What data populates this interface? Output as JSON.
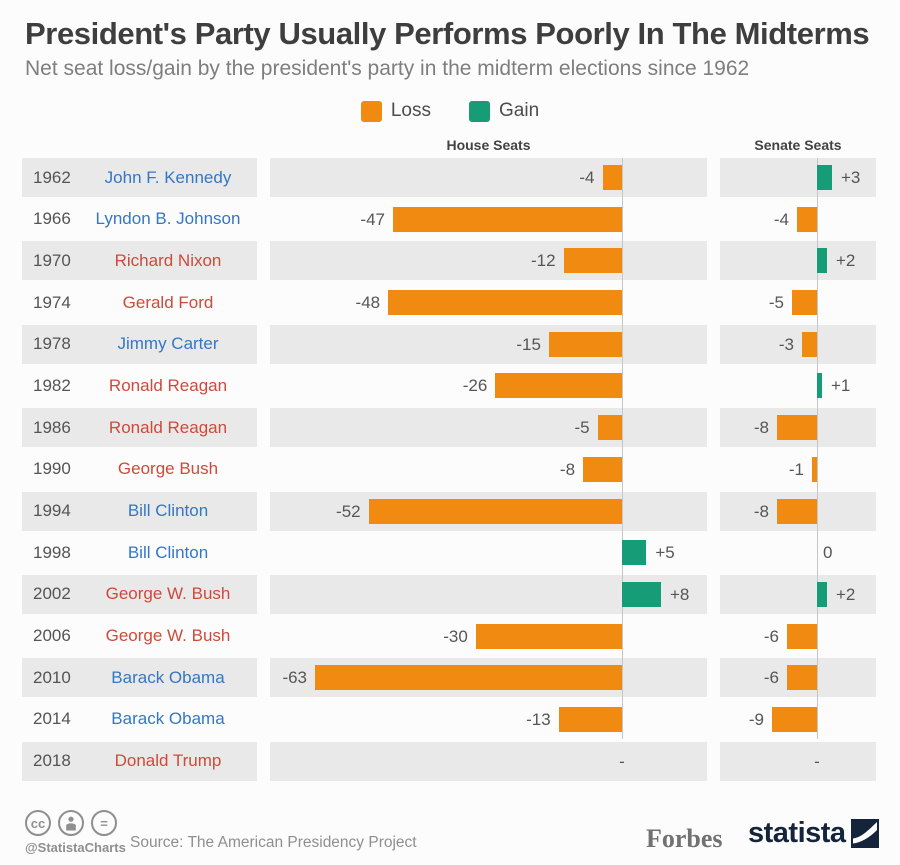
{
  "title": "President's Party Usually Performs Poorly In The Midterms",
  "subtitle": "Net seat loss/gain by the president's party in the midterm elections since 1962",
  "legend": {
    "loss_label": "Loss",
    "gain_label": "Gain"
  },
  "columns": {
    "house": "House Seats",
    "senate": "Senate Seats"
  },
  "colors": {
    "loss": "#f18a10",
    "gain": "#169d78",
    "democrat": "#3377c5",
    "republican": "#ce4a3a",
    "stripe": "#e9e9e9",
    "zero_line": "#c6c6c6",
    "value_text": "#565656"
  },
  "chart_data": {
    "type": "bar",
    "orientation": "horizontal",
    "title": "President's Party Usually Performs Poorly In The Midterms",
    "subtitle": "Net seat loss/gain by the president's party in the midterm elections since 1962",
    "panels": [
      {
        "key": "house",
        "label": "House Seats",
        "xlim": [
          -72,
          18
        ]
      },
      {
        "key": "senate",
        "label": "Senate Seats",
        "xlim": [
          -19,
          12
        ]
      }
    ],
    "legend": [
      {
        "label": "Loss",
        "color": "#f18a10"
      },
      {
        "label": "Gain",
        "color": "#169d78"
      }
    ],
    "rows": [
      {
        "year": "1962",
        "president": "John F. Kennedy",
        "party": "democrat",
        "house": -4,
        "senate": 3
      },
      {
        "year": "1966",
        "president": "Lyndon B. Johnson",
        "party": "democrat",
        "house": -47,
        "senate": -4
      },
      {
        "year": "1970",
        "president": "Richard Nixon",
        "party": "republican",
        "house": -12,
        "senate": 2
      },
      {
        "year": "1974",
        "president": "Gerald Ford",
        "party": "republican",
        "house": -48,
        "senate": -5
      },
      {
        "year": "1978",
        "president": "Jimmy Carter",
        "party": "democrat",
        "house": -15,
        "senate": -3
      },
      {
        "year": "1982",
        "president": "Ronald Reagan",
        "party": "republican",
        "house": -26,
        "senate": 1
      },
      {
        "year": "1986",
        "president": "Ronald Reagan",
        "party": "republican",
        "house": -5,
        "senate": -8
      },
      {
        "year": "1990",
        "president": "George Bush",
        "party": "republican",
        "house": -8,
        "senate": -1
      },
      {
        "year": "1994",
        "president": "Bill Clinton",
        "party": "democrat",
        "house": -52,
        "senate": -8
      },
      {
        "year": "1998",
        "president": "Bill Clinton",
        "party": "democrat",
        "house": 5,
        "senate": 0
      },
      {
        "year": "2002",
        "president": "George W. Bush",
        "party": "republican",
        "house": 8,
        "senate": 2
      },
      {
        "year": "2006",
        "president": "George W. Bush",
        "party": "republican",
        "house": -30,
        "senate": -6
      },
      {
        "year": "2010",
        "president": "Barack Obama",
        "party": "democrat",
        "house": -63,
        "senate": -6
      },
      {
        "year": "2014",
        "president": "Barack Obama",
        "party": "democrat",
        "house": -13,
        "senate": -9
      },
      {
        "year": "2018",
        "president": "Donald Trump",
        "party": "republican",
        "house": null,
        "senate": null
      }
    ]
  },
  "footer": {
    "cc_label": "cc",
    "equals_label": "=",
    "handle": "@StatistaCharts",
    "source": "Source: The American Presidency Project",
    "forbes": "Forbes",
    "statista": "statista"
  }
}
